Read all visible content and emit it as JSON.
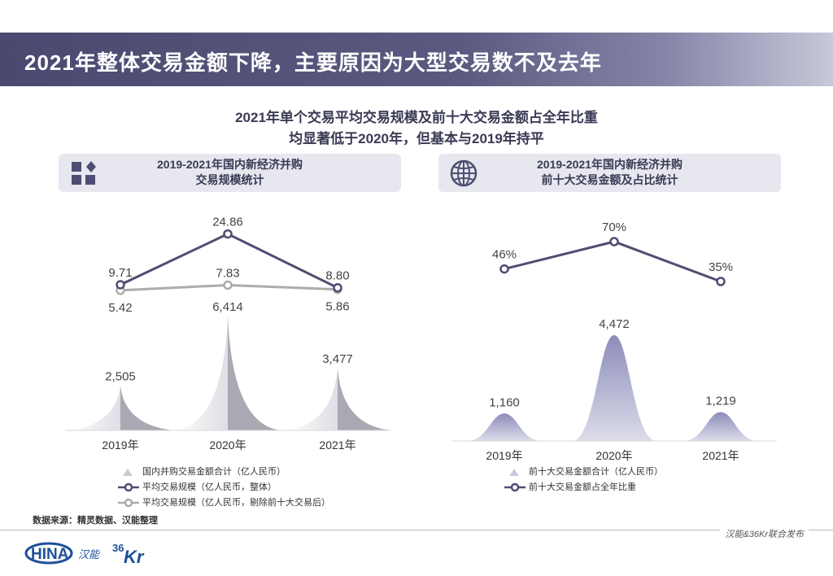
{
  "header": {
    "title": "2021年整体交易金额下降，主要原因为大型交易数不及去年"
  },
  "subtitle": {
    "line1": "2021年单个交易平均交易规模及前十大交易金额占全年比重",
    "line2": "均显著低于2020年，但基本与2019年持平"
  },
  "left_panel": {
    "header_line1": "2019-2021年国内新经济并购",
    "header_line2": "交易规模统计",
    "icon": "grid-diamond-icon",
    "legend": [
      "国内并购交易金额合计（亿人民币）",
      "平均交易规模（亿人民币，整体）",
      "平均交易规模（亿人民币，剔除前十大交易后）"
    ]
  },
  "right_panel": {
    "header_line1": "2019-2021年国内新经济并购",
    "header_line2": "前十大交易金额及占比统计",
    "icon": "globe-icon",
    "legend": [
      "前十大交易金额合计（亿人民币）",
      "前十大交易金额占全年比重"
    ]
  },
  "chart_data": [
    {
      "type": "area",
      "categories": [
        "2019年",
        "2020年",
        "2021年"
      ],
      "series": [
        {
          "name": "国内并购交易金额合计（亿人民币）",
          "type": "area",
          "values": [
            2505,
            6414,
            3477
          ],
          "labels": [
            "2,505",
            "6,414",
            "3,477"
          ],
          "color": "#a9a9b4"
        },
        {
          "name": "平均交易规模（亿人民币，整体）",
          "type": "line",
          "values": [
            9.71,
            24.86,
            8.8
          ],
          "labels": [
            "9.71",
            "24.86",
            "8.80"
          ],
          "color": "#4f4d72"
        },
        {
          "name": "平均交易规模（亿人民币，剔除前十大交易后）",
          "type": "line",
          "values": [
            5.42,
            7.83,
            5.86
          ],
          "labels": [
            "5.42",
            "7.83",
            "5.86"
          ],
          "color": "#acacac"
        }
      ]
    },
    {
      "type": "area",
      "categories": [
        "2019年",
        "2020年",
        "2021年"
      ],
      "series": [
        {
          "name": "前十大交易金额合计（亿人民币）",
          "type": "area",
          "values": [
            1160,
            4472,
            1219
          ],
          "labels": [
            "1,160",
            "4,472",
            "1,219"
          ],
          "color": "#9b9bc2"
        },
        {
          "name": "前十大交易金额占全年比重",
          "type": "line",
          "values": [
            46,
            70,
            35
          ],
          "labels": [
            "46%",
            "70%",
            "35%"
          ],
          "color": "#4f4d72"
        }
      ]
    }
  ],
  "footer": {
    "source": "数据来源：精灵数据、汉能整理",
    "publisher": "汉能&36Kr联合发布",
    "logo_left": "HINA",
    "logo_left_glyph": "汉能",
    "logo_right_num": "36",
    "logo_right_text": "Kr"
  },
  "colors": {
    "primary": "#4f4d72",
    "light_line": "#acacac",
    "header_bg": "#e7e7ef",
    "accent_blue": "#1e4f9a"
  }
}
